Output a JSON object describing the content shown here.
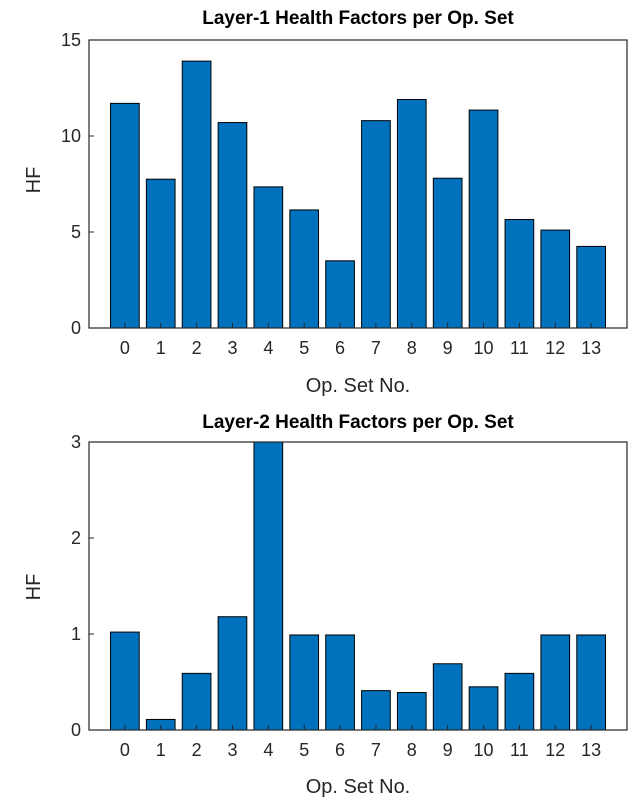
{
  "colors": {
    "bar": "#0072BD",
    "bar_edge": "#000000",
    "axis": "#262626"
  },
  "chart_data": [
    {
      "type": "bar",
      "title": "Layer-1 Health Factors per Op. Set",
      "xlabel": "Op. Set No.",
      "ylabel": "HF",
      "categories": [
        "0",
        "1",
        "2",
        "3",
        "4",
        "5",
        "6",
        "7",
        "8",
        "9",
        "10",
        "11",
        "12",
        "13"
      ],
      "values": [
        11.7,
        7.75,
        13.9,
        10.7,
        7.35,
        6.15,
        3.5,
        10.8,
        11.9,
        7.8,
        11.35,
        5.65,
        5.1,
        4.25
      ],
      "ylim": [
        0,
        15
      ],
      "yticks": [
        "0",
        "5",
        "10",
        "15"
      ],
      "grid": false
    },
    {
      "type": "bar",
      "title": "Layer-2  Health Factors per Op. Set",
      "xlabel": "Op. Set No.",
      "ylabel": "HF",
      "categories": [
        "0",
        "1",
        "2",
        "3",
        "4",
        "5",
        "6",
        "7",
        "8",
        "9",
        "10",
        "11",
        "12",
        "13"
      ],
      "values": [
        1.02,
        0.11,
        0.59,
        1.18,
        3.0,
        0.99,
        0.99,
        0.41,
        0.39,
        0.69,
        0.45,
        0.59,
        0.99,
        0.99
      ],
      "ylim": [
        0,
        3
      ],
      "yticks": [
        "0",
        "1",
        "2",
        "3"
      ],
      "grid": false
    }
  ]
}
